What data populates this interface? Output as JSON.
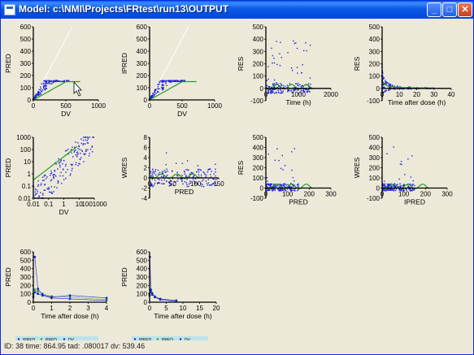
{
  "window": {
    "title": "Model: c:\\NMI\\Projects\\FRtest\\run13\\OUTPUT",
    "minimize_glyph": "_",
    "maximize_glyph": "□",
    "close_glyph": "✕"
  },
  "status": {
    "text": "ID: 38 time: 864.95 tad: .080017 dv: 539.46"
  },
  "colors": {
    "points": "#1f1fe0",
    "smooth": "#20a020",
    "legend_bg": "#b9e4ec"
  },
  "chart_data": [
    {
      "type": "scatter",
      "xlabel": "DV",
      "ylabel": "PRED",
      "xlim": [
        0,
        1000
      ],
      "ylim": [
        0,
        600
      ],
      "xticks": [
        "0",
        "500",
        "1000"
      ],
      "yticks": [
        "0",
        "100",
        "200",
        "300",
        "400",
        "500",
        "600"
      ],
      "identity_line": true
    },
    {
      "type": "scatter",
      "xlabel": "DV",
      "ylabel": "IPRED",
      "xlim": [
        0,
        1000
      ],
      "ylim": [
        0,
        600
      ],
      "xticks": [
        "0",
        "500",
        "1000"
      ],
      "yticks": [
        "0",
        "100",
        "200",
        "300",
        "400",
        "500",
        "600"
      ],
      "identity_line": true
    },
    {
      "type": "scatter",
      "xlabel": "Time (h)",
      "ylabel": "RES",
      "xlim": [
        0,
        2000
      ],
      "ylim": [
        -100,
        500
      ],
      "xticks": [
        "0",
        "1000",
        "2000"
      ],
      "yticks": [
        "-100",
        "0",
        "100",
        "200",
        "300",
        "400",
        "500"
      ]
    },
    {
      "type": "scatter",
      "xlabel": "Time after dose (h)",
      "ylabel": "RES",
      "xlim": [
        0,
        40
      ],
      "ylim": [
        -100,
        500
      ],
      "xticks": [
        "0",
        "10",
        "20",
        "30",
        "40"
      ],
      "yticks": [
        "-100",
        "0",
        "100",
        "200",
        "300",
        "400",
        "500"
      ]
    },
    {
      "type": "scatter",
      "xlabel": "DV",
      "ylabel": "PRED",
      "log": true,
      "xlim": [
        0.01,
        1000
      ],
      "ylim": [
        0.01,
        1000
      ],
      "xticks": [
        "0.01",
        "0.1",
        "1",
        "10",
        "1001000"
      ],
      "yticks": [
        "0.01",
        "0.1",
        "1",
        "10",
        "100",
        "1000"
      ]
    },
    {
      "type": "scatter",
      "xlabel": "PRED",
      "ylabel": "WRES",
      "xlim": [
        0,
        150
      ],
      "ylim": [
        -4,
        8
      ],
      "xticks": [
        "0",
        "50",
        "100",
        "150"
      ],
      "yticks": [
        "-4",
        "-2",
        "0",
        "2",
        "4",
        "6",
        "8"
      ]
    },
    {
      "type": "scatter",
      "xlabel": "PRED",
      "ylabel": "RES",
      "xlim": [
        0,
        300
      ],
      "ylim": [
        -100,
        500
      ],
      "xticks": [
        "0",
        "100",
        "200",
        "300"
      ],
      "yticks": [
        "-100",
        "0",
        "100",
        "200",
        "300",
        "400",
        "500"
      ]
    },
    {
      "type": "scatter",
      "xlabel": "IPRED",
      "ylabel": "WRES",
      "xlim": [
        0,
        300
      ],
      "ylim": [
        -100,
        500
      ],
      "xticks": [
        "0",
        "100",
        "200",
        "300"
      ],
      "yticks": [
        "-100",
        "0",
        "100",
        "200",
        "300",
        "400",
        "500"
      ]
    },
    {
      "type": "line",
      "xlabel": "Time after dose (h)",
      "ylabel": "PRED",
      "xlim": [
        0,
        4
      ],
      "ylim": [
        0,
        600
      ],
      "xticks": [
        "0",
        "1",
        "2",
        "3",
        "4"
      ],
      "yticks": [
        "0",
        "100",
        "200",
        "300",
        "400",
        "500",
        "600"
      ],
      "legend": [
        "IPRED",
        "PRED",
        "DV"
      ],
      "series": [
        {
          "name": "IPRED",
          "x": [
            0,
            0.08,
            0.25,
            0.5,
            1,
            2,
            4
          ],
          "y": [
            60,
            120,
            100,
            80,
            50,
            40,
            20
          ]
        },
        {
          "name": "PRED",
          "x": [
            0,
            0.08,
            0.25,
            0.5,
            1,
            2,
            4
          ],
          "y": [
            80,
            150,
            130,
            100,
            70,
            60,
            30
          ]
        },
        {
          "name": "DV",
          "x": [
            0.08,
            0.25,
            0.5,
            1,
            2,
            4
          ],
          "y": [
            539,
            160,
            90,
            60,
            80,
            50
          ]
        }
      ]
    },
    {
      "type": "line",
      "xlabel": "Time after dose (h)",
      "ylabel": "PRED",
      "xlim": [
        0,
        25
      ],
      "ylim": [
        0,
        600
      ],
      "xticks": [
        "0",
        "5",
        "10",
        "15",
        "20"
      ],
      "yticks": [
        "0",
        "100",
        "200",
        "300",
        "400",
        "500",
        "600"
      ],
      "legend": [
        "IPRED",
        "PRED",
        "DV"
      ],
      "series": [
        {
          "name": "IPRED",
          "x": [
            0,
            0.5,
            1,
            2,
            4,
            10
          ],
          "y": [
            80,
            120,
            90,
            60,
            30,
            10
          ]
        },
        {
          "name": "PRED",
          "x": [
            0,
            0.5,
            1,
            2,
            4,
            10
          ],
          "y": [
            100,
            140,
            110,
            70,
            40,
            15
          ]
        },
        {
          "name": "DV",
          "x": [
            0.08,
            0.5,
            1,
            2,
            4,
            10
          ],
          "y": [
            539,
            150,
            100,
            60,
            40,
            20
          ]
        }
      ]
    }
  ]
}
